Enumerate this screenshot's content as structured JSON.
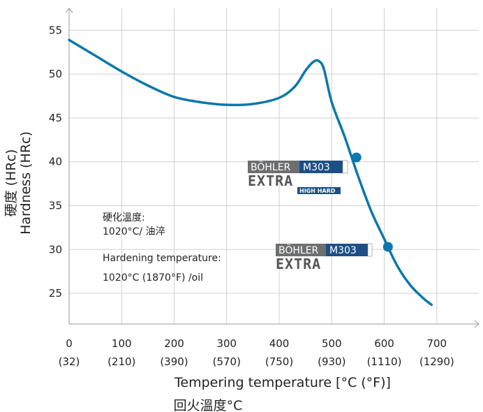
{
  "chart_data": {
    "type": "line",
    "xlabel": "Tempering temperature [°C (°F)]",
    "xlabel_cn": "回火溫度°C",
    "ylabel": "Hardness (HRc)",
    "ylabel_cn": "硬度 (HRc)",
    "xlim": [
      0,
      780
    ],
    "ylim": [
      21.5,
      57.5
    ],
    "x_ticks": [
      {
        "c": "0",
        "f": "(32)"
      },
      {
        "c": "100",
        "f": "(210)"
      },
      {
        "c": "200",
        "f": "(390)"
      },
      {
        "c": "300",
        "f": "(570)"
      },
      {
        "c": "400",
        "f": "(750)"
      },
      {
        "c": "500",
        "f": "(930)"
      },
      {
        "c": "600",
        "f": "(1110)"
      },
      {
        "c": "700",
        "f": "(1290)"
      }
    ],
    "y_ticks": [
      "25",
      "30",
      "35",
      "40",
      "45",
      "50",
      "55"
    ],
    "grid": true,
    "series": [
      {
        "color": "#0a78ab",
        "x": [
          0,
          50,
          100,
          150,
          200,
          250,
          300,
          350,
          400,
          430,
          450,
          465,
          475,
          485,
          500,
          525,
          550,
          575,
          600,
          625,
          650,
          675,
          690
        ],
        "y": [
          53.9,
          52.1,
          50.3,
          48.7,
          47.4,
          46.8,
          46.5,
          46.6,
          47.3,
          48.6,
          50.4,
          51.4,
          51.5,
          50.6,
          46.8,
          42.8,
          38.4,
          34.4,
          31.2,
          28.1,
          25.9,
          24.4,
          23.7
        ]
      }
    ],
    "markers": [
      {
        "x": 547,
        "y": 40.5
      },
      {
        "x": 607,
        "y": 30.3
      }
    ],
    "annotations": [
      "硬化溫度:",
      "1020°C/ 油淬",
      "Hardening temperature:",
      "1020°C (1870°F) /oil"
    ],
    "logos": [
      {
        "brand": "BÖHLER",
        "grade": "M303",
        "sub": "EXTRA",
        "badge": "HIGH HARD"
      },
      {
        "brand": "BÖHLER",
        "grade": "M303",
        "sub": "EXTRA"
      }
    ]
  }
}
